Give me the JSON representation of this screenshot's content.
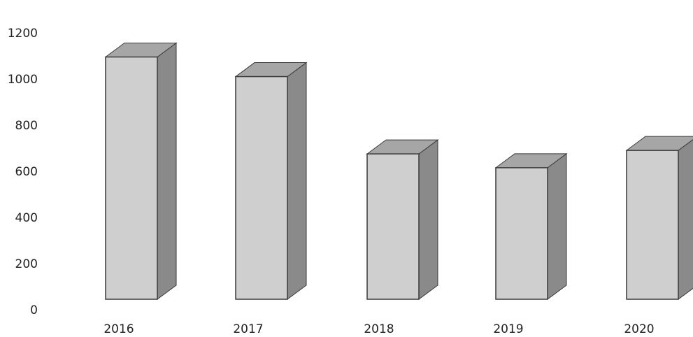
{
  "chart_data": {
    "type": "bar",
    "categories": [
      "2016",
      "2017",
      "2018",
      "2019",
      "2020"
    ],
    "values": [
      1050,
      965,
      630,
      570,
      645
    ],
    "ylim": [
      0,
      1200
    ],
    "yticks": [
      "0",
      "200",
      "400",
      "600",
      "800",
      "1000",
      "1200"
    ],
    "grid": false,
    "legend": "none",
    "bar_front_color": "#cfcfcf",
    "bar_top_color": "#a6a6a6",
    "bar_side_color": "#8a8a8a",
    "outline_color": "#3a3a3a"
  }
}
